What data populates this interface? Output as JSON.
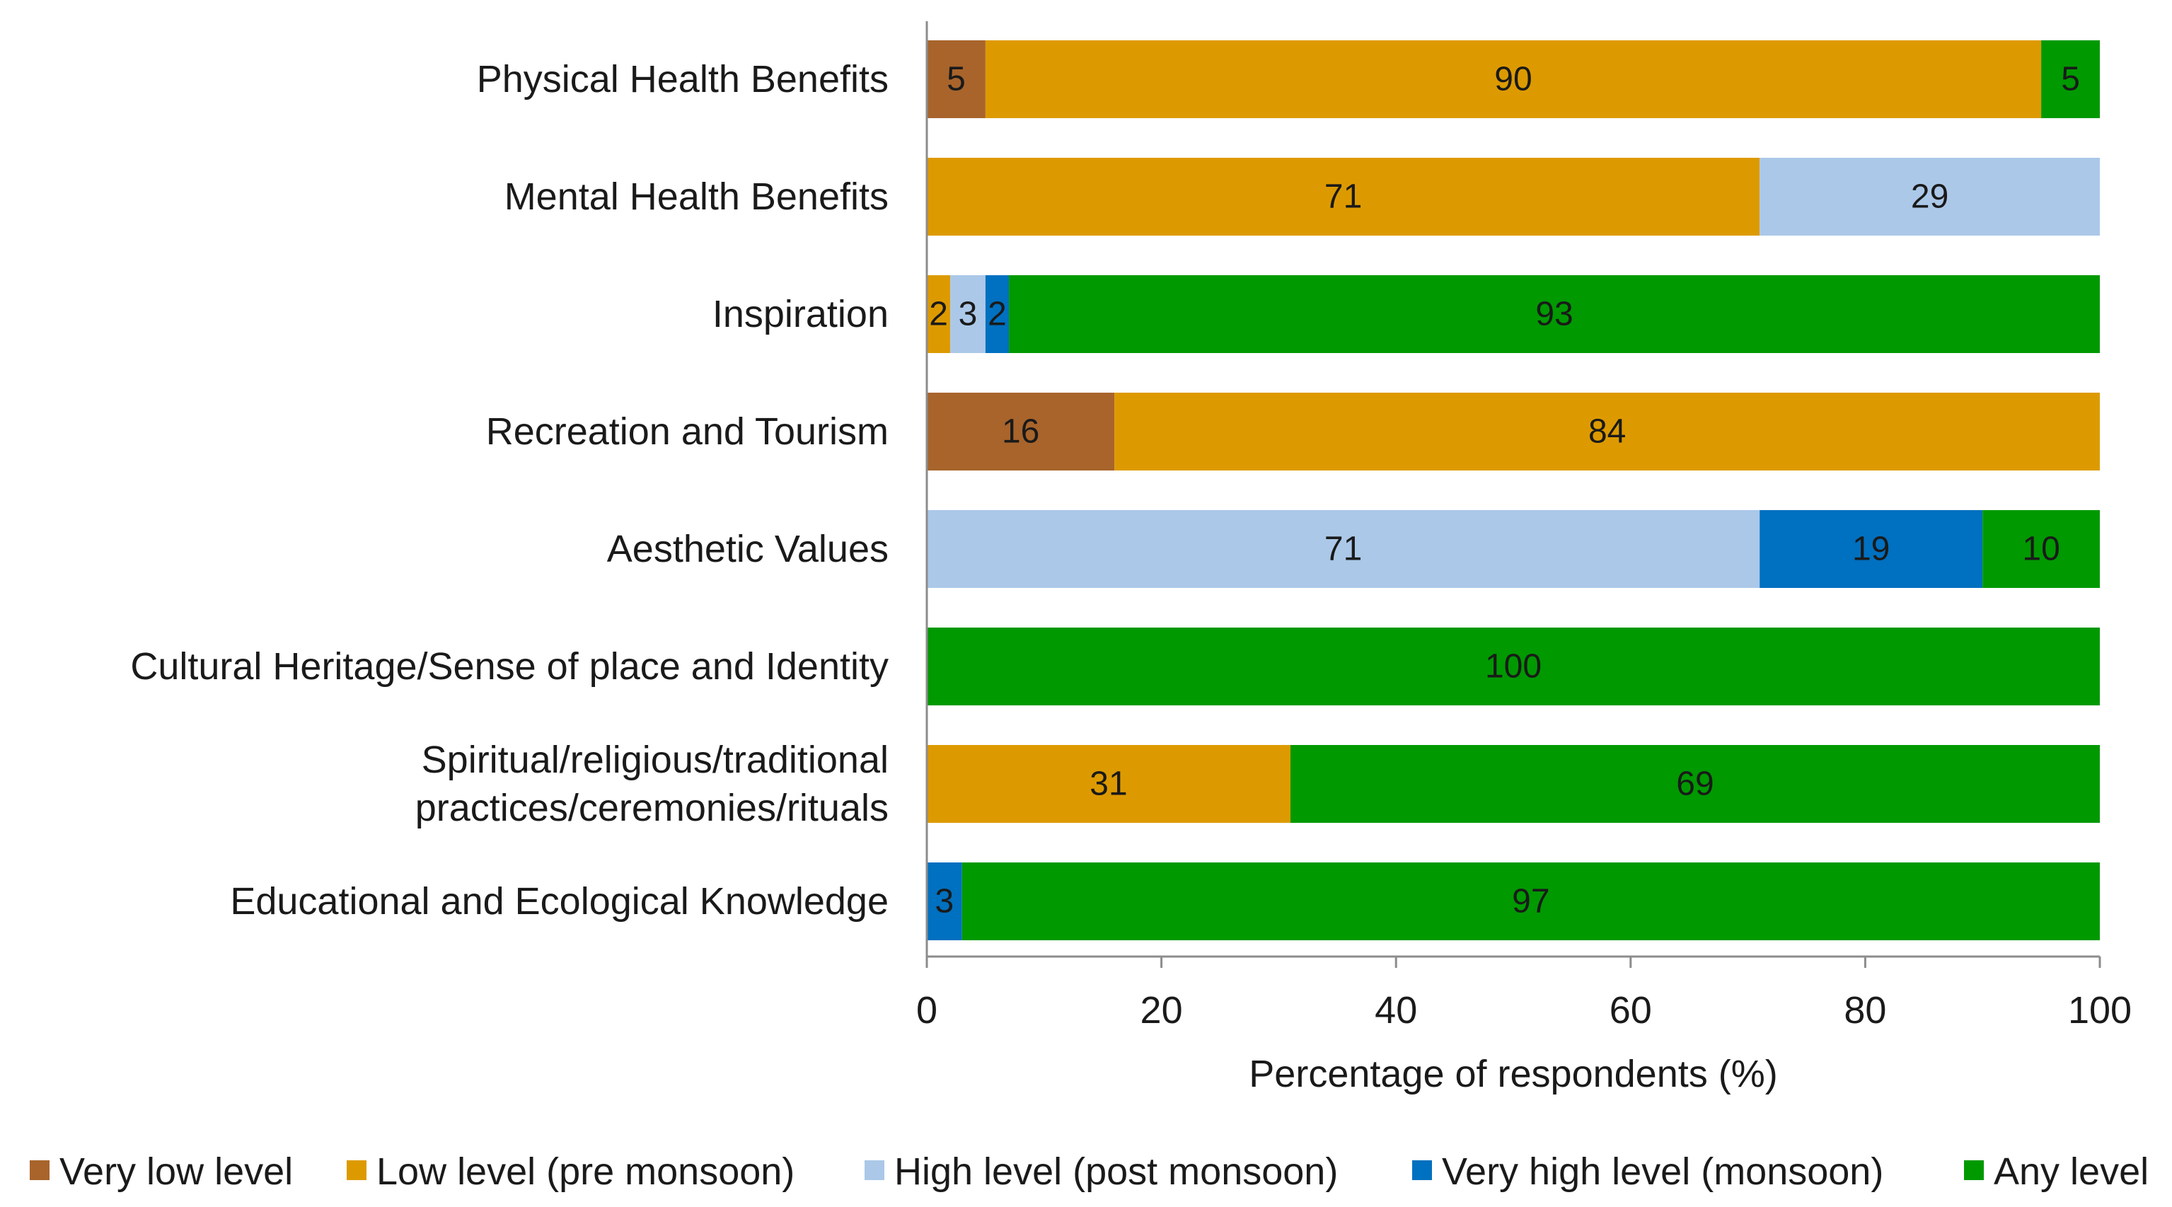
{
  "chart_data": {
    "type": "bar",
    "orientation": "horizontal",
    "stacked": true,
    "categories": [
      "Physical Health Benefits",
      "Mental Health Benefits",
      "Inspiration",
      "Recreation and Tourism",
      "Aesthetic Values",
      "Cultural Heritage/Sense of place and Identity",
      "Spiritual/religious/traditional practices/ceremonies/rituals",
      "Educational and Ecological Knowledge"
    ],
    "category_lines": [
      [
        "Physical Health Benefits"
      ],
      [
        "Mental Health Benefits"
      ],
      [
        "Inspiration"
      ],
      [
        "Recreation and Tourism"
      ],
      [
        "Aesthetic Values"
      ],
      [
        "Cultural Heritage/Sense of place and Identity"
      ],
      [
        "Spiritual/religious/traditional",
        "practices/ceremonies/rituals"
      ],
      [
        "Educational and Ecological Knowledge"
      ]
    ],
    "series": [
      {
        "name": "Very low level",
        "color": "#a8642b",
        "values": [
          5,
          0,
          0,
          16,
          0,
          0,
          0,
          0
        ]
      },
      {
        "name": "Low level (pre monsoon)",
        "color": "#dd9a00",
        "values": [
          90,
          71,
          2,
          84,
          0,
          0,
          31,
          0
        ]
      },
      {
        "name": "High level (post monsoon)",
        "color": "#abc8e8",
        "values": [
          0,
          29,
          3,
          0,
          71,
          0,
          0,
          0
        ]
      },
      {
        "name": "Very high level (monsoon)",
        "color": "#0070c0",
        "values": [
          0,
          0,
          2,
          0,
          19,
          0,
          0,
          3
        ]
      },
      {
        "name": "Any level",
        "color": "#009900",
        "values": [
          5,
          0,
          93,
          0,
          10,
          100,
          69,
          97
        ]
      }
    ],
    "xlabel": "Percentage of respondents (%)",
    "ylabel": "",
    "xlim": [
      0,
      100
    ],
    "xticks": [
      0,
      20,
      40,
      60,
      80,
      100
    ],
    "grid": false,
    "legend_position": "bottom"
  }
}
